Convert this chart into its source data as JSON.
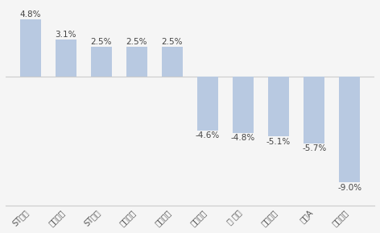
{
  "categories": [
    "ST加加",
    "日辰股份",
    "ST春天",
    "庄园牧场",
    "熊猫乳品",
    "莱茵股份",
    "金 徽山",
    "涪陵榨菜",
    "保格A",
    "金徽酒业"
  ],
  "values": [
    4.8,
    3.1,
    2.5,
    2.5,
    2.5,
    -4.6,
    -4.8,
    -5.1,
    -5.7,
    -9.0
  ],
  "bar_color": "#b8c9e1",
  "background_color": "#f5f5f5",
  "ylim": [
    -11,
    6
  ],
  "label_fontsize": 7.5,
  "tick_fontsize": 7
}
